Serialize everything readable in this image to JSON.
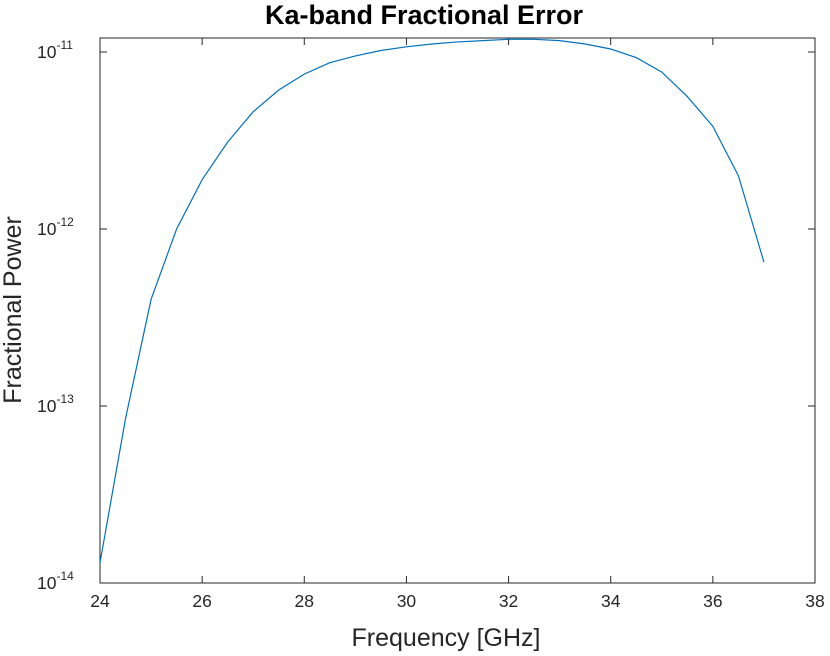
{
  "chart_data": {
    "type": "line",
    "title": "Ka-band Fractional Error",
    "xlabel": "Frequency [GHz]",
    "ylabel": "Fractional Power",
    "xlim": [
      24,
      38
    ],
    "ylim": [
      1e-14,
      1.2e-11
    ],
    "yscale": "log",
    "grid": false,
    "x_ticks": [
      "24",
      "26",
      "28",
      "30",
      "32",
      "34",
      "36",
      "38"
    ],
    "y_ticks": [
      {
        "base": "10",
        "exponent": "-14"
      },
      {
        "base": "10",
        "exponent": "-13"
      },
      {
        "base": "10",
        "exponent": "-12"
      },
      {
        "base": "10",
        "exponent": "-11"
      }
    ],
    "series": [
      {
        "color": "#0072bd",
        "x": [
          24.0,
          24.5,
          25.0,
          25.5,
          26.0,
          26.5,
          27.0,
          27.5,
          28.0,
          28.5,
          29.0,
          29.5,
          30.0,
          30.5,
          31.0,
          31.5,
          32.0,
          32.5,
          33.0,
          33.5,
          34.0,
          34.5,
          35.0,
          35.5,
          36.0,
          36.5,
          37.0
        ],
        "y": [
          1.3e-14,
          8.5e-14,
          4e-13,
          1e-12,
          1.9e-12,
          3.1e-12,
          4.6e-12,
          6.1e-12,
          7.5e-12,
          8.7e-12,
          9.5e-12,
          1.02e-11,
          1.07e-11,
          1.11e-11,
          1.14e-11,
          1.16e-11,
          1.18e-11,
          1.18e-11,
          1.16e-11,
          1.11e-11,
          1.04e-11,
          9.3e-12,
          7.7e-12,
          5.6e-12,
          3.8e-12,
          2e-12,
          6.5e-13
        ]
      }
    ]
  }
}
